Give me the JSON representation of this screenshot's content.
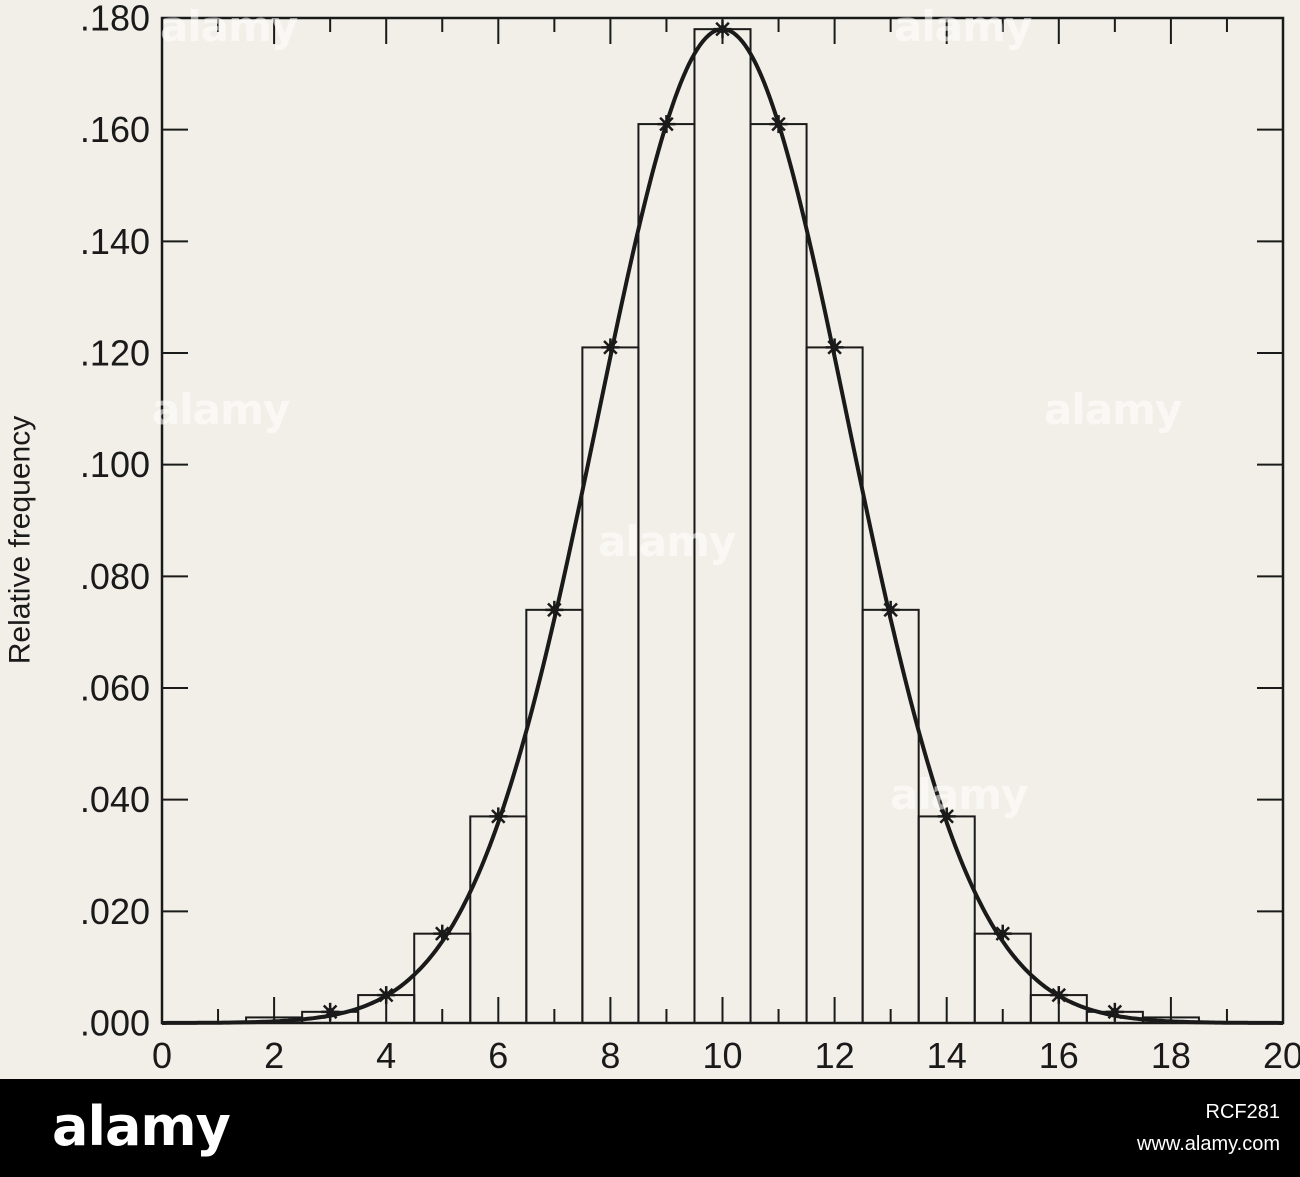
{
  "chart_data": {
    "type": "bar",
    "ylabel": "Relative frequency",
    "xlabel": "",
    "xlim": [
      0,
      20
    ],
    "ylim": [
      0,
      0.18
    ],
    "x_ticks": [
      "0",
      "2",
      "4",
      "6",
      "8",
      "10",
      "12",
      "14",
      "16",
      "18",
      "20"
    ],
    "y_ticks": [
      ".000",
      ".020",
      ".040",
      ".060",
      ".080",
      ".100",
      ".120",
      ".140",
      ".160",
      ".180"
    ],
    "categories": [
      2,
      3,
      4,
      5,
      6,
      7,
      8,
      9,
      10,
      11,
      12,
      13,
      14,
      15,
      16,
      17,
      18
    ],
    "values": [
      0.001,
      0.002,
      0.005,
      0.016,
      0.037,
      0.074,
      0.121,
      0.161,
      0.178,
      0.161,
      0.121,
      0.074,
      0.037,
      0.016,
      0.005,
      0.002,
      0.001
    ],
    "curve": {
      "type": "normal",
      "mean": 10,
      "sd": 2.236,
      "peak": 0.178
    },
    "markers": "star",
    "grid": false
  },
  "footer": {
    "brand": "alamy",
    "image_id": "RCF281",
    "site": "www.alamy.com"
  },
  "watermark": "alamy",
  "colors": {
    "background": "#f1efe7",
    "ink": "#1a1a1a",
    "footer": "#000000"
  }
}
